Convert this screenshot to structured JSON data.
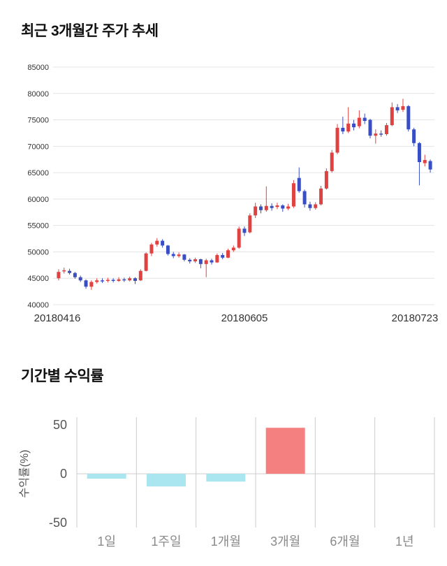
{
  "page": {
    "background": "#ffffff"
  },
  "chart_data": [
    {
      "type": "candlestick",
      "title": "최근 3개월간 주가 추세",
      "ylim": [
        40000,
        85000
      ],
      "y_tick_step": 5000,
      "y_tick_labels": [
        "40000",
        "45000",
        "50000",
        "55000",
        "60000",
        "65000",
        "70000",
        "75000",
        "80000",
        "85000"
      ],
      "x_tick_labels": [
        "20180416",
        "20180605",
        "20180723"
      ],
      "grid": true,
      "up_color": "#e04141",
      "down_color": "#3a4ec4",
      "grid_color": "#e4e4e4",
      "axis_text_color": "#333333",
      "values_format": "ohlc",
      "candles": [
        [
          45000,
          46700,
          44600,
          46200
        ],
        [
          46300,
          47000,
          45900,
          46500
        ],
        [
          46400,
          46800,
          45700,
          46000
        ],
        [
          46000,
          46200,
          44900,
          45200
        ],
        [
          45200,
          45500,
          44300,
          44600
        ],
        [
          44600,
          44800,
          43000,
          43400
        ],
        [
          43400,
          44600,
          42800,
          44300
        ],
        [
          44300,
          45000,
          44000,
          44600
        ],
        [
          44600,
          45000,
          44100,
          44400
        ],
        [
          44500,
          45100,
          44200,
          44700
        ],
        [
          44700,
          45000,
          44200,
          44500
        ],
        [
          44500,
          45200,
          44300,
          44800
        ],
        [
          44800,
          45100,
          44300,
          44600
        ],
        [
          44600,
          45300,
          44400,
          45000
        ],
        [
          45000,
          45200,
          43900,
          44500
        ],
        [
          44600,
          46700,
          44500,
          46400
        ],
        [
          46400,
          49900,
          46300,
          49700
        ],
        [
          49700,
          51700,
          49200,
          51400
        ],
        [
          51400,
          52600,
          51000,
          52100
        ],
        [
          52100,
          52400,
          50800,
          51200
        ],
        [
          51200,
          51300,
          49300,
          49600
        ],
        [
          49600,
          50000,
          48800,
          49200
        ],
        [
          49200,
          49900,
          48900,
          49500
        ],
        [
          49500,
          49600,
          48200,
          48500
        ],
        [
          48500,
          48800,
          47800,
          48200
        ],
        [
          48200,
          48900,
          47900,
          48600
        ],
        [
          48600,
          48700,
          46900,
          47700
        ],
        [
          47700,
          48700,
          45200,
          48400
        ],
        [
          48400,
          48700,
          47600,
          48000
        ],
        [
          48000,
          49700,
          47900,
          49400
        ],
        [
          49400,
          49800,
          48600,
          48900
        ],
        [
          48900,
          50600,
          48800,
          50300
        ],
        [
          50300,
          51200,
          50000,
          50800
        ],
        [
          50800,
          54800,
          50600,
          54400
        ],
        [
          54400,
          54800,
          53000,
          53600
        ],
        [
          53700,
          57300,
          53500,
          56900
        ],
        [
          56900,
          59300,
          56400,
          58600
        ],
        [
          58600,
          59000,
          57300,
          57900
        ],
        [
          57900,
          62400,
          57600,
          58700
        ],
        [
          58700,
          59200,
          57800,
          58300
        ],
        [
          58500,
          59300,
          58100,
          58800
        ],
        [
          58800,
          59000,
          57600,
          58200
        ],
        [
          58200,
          59100,
          57900,
          58600
        ],
        [
          58600,
          63600,
          58300,
          63000
        ],
        [
          64000,
          66000,
          61200,
          61500
        ],
        [
          61500,
          61800,
          58400,
          59000
        ],
        [
          59000,
          59500,
          57800,
          58300
        ],
        [
          58300,
          59400,
          58000,
          59000
        ],
        [
          59000,
          62500,
          58800,
          62000
        ],
        [
          62000,
          65800,
          61800,
          65300
        ],
        [
          65300,
          69300,
          65000,
          68800
        ],
        [
          68800,
          74200,
          68500,
          73500
        ],
        [
          73500,
          75600,
          72300,
          72800
        ],
        [
          72800,
          77400,
          72500,
          74300
        ],
        [
          74300,
          75000,
          73000,
          73600
        ],
        [
          73800,
          76800,
          73400,
          75400
        ],
        [
          75400,
          76200,
          74200,
          74800
        ],
        [
          75000,
          75200,
          71500,
          72000
        ],
        [
          72000,
          73200,
          70500,
          72400
        ],
        [
          72400,
          73000,
          71800,
          72200
        ],
        [
          72300,
          74400,
          72000,
          74000
        ],
        [
          74000,
          78300,
          73800,
          77400
        ],
        [
          77400,
          78000,
          76300,
          76800
        ],
        [
          76900,
          79000,
          76500,
          77600
        ],
        [
          77600,
          77800,
          72800,
          73200
        ],
        [
          73200,
          73500,
          70000,
          70600
        ],
        [
          70600,
          70800,
          62600,
          67000
        ],
        [
          66800,
          68400,
          66200,
          67400
        ],
        [
          67200,
          67500,
          65000,
          65600
        ]
      ]
    },
    {
      "type": "bar",
      "title": "기간별 수익률",
      "categories": [
        "1일",
        "1주일",
        "1개월",
        "3개월",
        "6개월",
        "1년"
      ],
      "values": [
        -5,
        -13,
        -8,
        47,
        0,
        0
      ],
      "ylabel": "수익률(%)",
      "ylim": [
        -50,
        50
      ],
      "y_ticks": [
        50,
        0,
        -50
      ],
      "grid": true,
      "positive_color": "#f48080",
      "negative_color": "#a9e6f0",
      "grid_color": "#cccccc",
      "axis_text_color": "#555555",
      "category_text_color": "#8a8a8a"
    }
  ]
}
